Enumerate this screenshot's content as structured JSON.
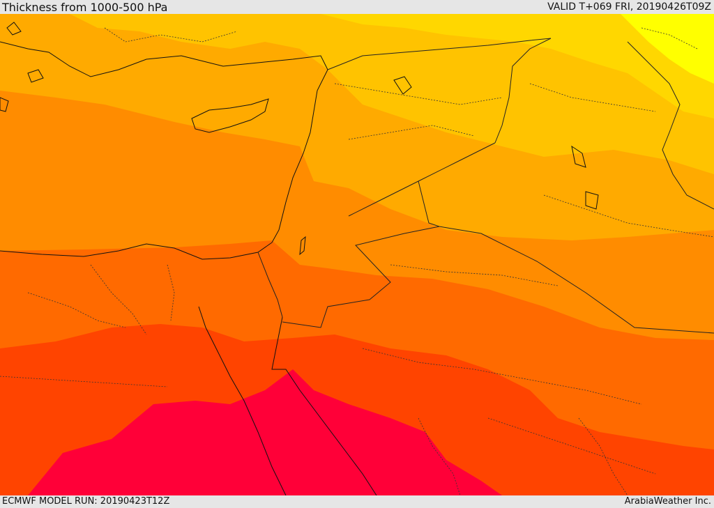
{
  "header": {
    "title": "Thickness from 1000-500 hPa",
    "valid": "VALID T+069 FRI, 20190426T09Z"
  },
  "footer": {
    "model_run": "ECMWF MODEL RUN: 20190423T12Z",
    "credit": "ArabiaWeather Inc."
  },
  "map": {
    "colors": {
      "band_yellow": "#ffff00",
      "band_gold": "#ffd700",
      "band_yellow_orange": "#ffc300",
      "band_light_orange": "#ffaa00",
      "band_orange": "#ff8c00",
      "band_dark_orange": "#ff6a00",
      "band_red_orange": "#ff4400",
      "band_crimson": "#ff0038",
      "coastline": "#111111",
      "border_line": "#222222"
    }
  }
}
